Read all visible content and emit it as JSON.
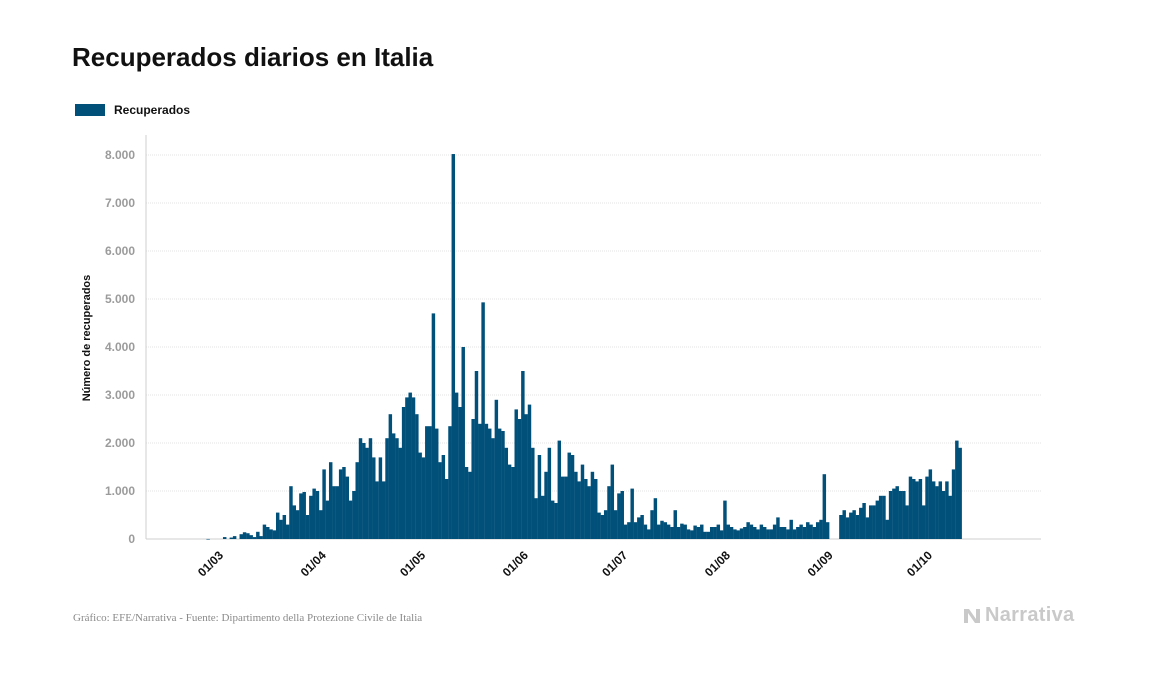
{
  "colors": {
    "bar": "#00507a",
    "grid": "#e3e3e3",
    "tick_text": "#9b9b9b",
    "brand": "#c9c9c9"
  },
  "chart_data": {
    "type": "bar",
    "title": "Recuperados diarios en Italia",
    "ylabel": "Número de recuperados",
    "xlabel": "",
    "ylim": [
      0,
      8400
    ],
    "yticks": [
      0,
      1000,
      2000,
      3000,
      4000,
      5000,
      6000,
      7000,
      8000
    ],
    "ytick_labels": [
      "0",
      "1.000",
      "2.000",
      "3.000",
      "4.000",
      "5.000",
      "6.000",
      "7.000",
      "8.000"
    ],
    "xticks": [
      {
        "date": "2020-03-01",
        "label": "01/03"
      },
      {
        "date": "2020-04-01",
        "label": "01/04"
      },
      {
        "date": "2020-05-01",
        "label": "01/05"
      },
      {
        "date": "2020-06-01",
        "label": "01/06"
      },
      {
        "date": "2020-07-01",
        "label": "01/07"
      },
      {
        "date": "2020-08-01",
        "label": "01/08"
      },
      {
        "date": "2020-09-01",
        "label": "01/09"
      },
      {
        "date": "2020-10-01",
        "label": "01/10"
      }
    ],
    "grid": true,
    "legend_position": "top-left",
    "series": [
      {
        "name": "Recuperados",
        "x_start": "2020-02-24",
        "values": [
          0,
          0,
          0,
          1,
          0,
          0,
          0,
          0,
          40,
          0,
          30,
          60,
          0,
          100,
          140,
          120,
          80,
          40,
          150,
          60,
          300,
          250,
          200,
          180,
          550,
          400,
          500,
          300,
          1100,
          700,
          600,
          950,
          980,
          500,
          900,
          1050,
          1000,
          600,
          1450,
          800,
          1600,
          1100,
          1100,
          1450,
          1500,
          1300,
          800,
          1000,
          1600,
          2100,
          2000,
          1900,
          2100,
          1700,
          1200,
          1700,
          1200,
          2100,
          2600,
          2200,
          2100,
          1900,
          2750,
          2950,
          3050,
          2950,
          2600,
          1800,
          1700,
          2350,
          2350,
          4700,
          2300,
          1600,
          1750,
          1250,
          2350,
          8020,
          3050,
          2750,
          4000,
          1500,
          1400,
          2500,
          3500,
          2400,
          4930,
          2400,
          2300,
          2100,
          2900,
          2300,
          2250,
          1900,
          1550,
          1500,
          2700,
          2500,
          3500,
          2600,
          2800,
          1900,
          850,
          1750,
          900,
          1400,
          1900,
          800,
          750,
          2050,
          1300,
          1300,
          1800,
          1750,
          1400,
          1200,
          1550,
          1250,
          1100,
          1400,
          1250,
          550,
          500,
          600,
          1100,
          1550,
          600,
          950,
          1000,
          300,
          350,
          1050,
          350,
          450,
          500,
          300,
          200,
          600,
          850,
          300,
          380,
          350,
          300,
          250,
          600,
          250,
          320,
          300,
          200,
          180,
          280,
          250,
          300,
          150,
          150,
          250,
          250,
          300,
          180,
          800,
          300,
          250,
          200,
          180,
          220,
          250,
          350,
          300,
          250,
          200,
          300,
          250,
          200,
          200,
          300,
          450,
          250,
          250,
          200,
          400,
          200,
          250,
          300,
          250,
          350,
          300,
          250,
          350,
          400,
          1350,
          350,
          0,
          0,
          0,
          500,
          600,
          450,
          550,
          600,
          500,
          650,
          750,
          450,
          700,
          700,
          800,
          900,
          900,
          400,
          1000,
          1050,
          1100,
          1000,
          1000,
          700,
          1300,
          1250,
          1200,
          1250,
          700,
          1300,
          1450,
          1200,
          1100,
          1200,
          1000,
          1200,
          900,
          1450,
          2050,
          1900
        ]
      }
    ]
  },
  "credits": {
    "source": "Gráfico: EFE/Narrativa - Fuente: Dipartimento della Protezione Civile de Italia",
    "brand": "Narrativa"
  }
}
